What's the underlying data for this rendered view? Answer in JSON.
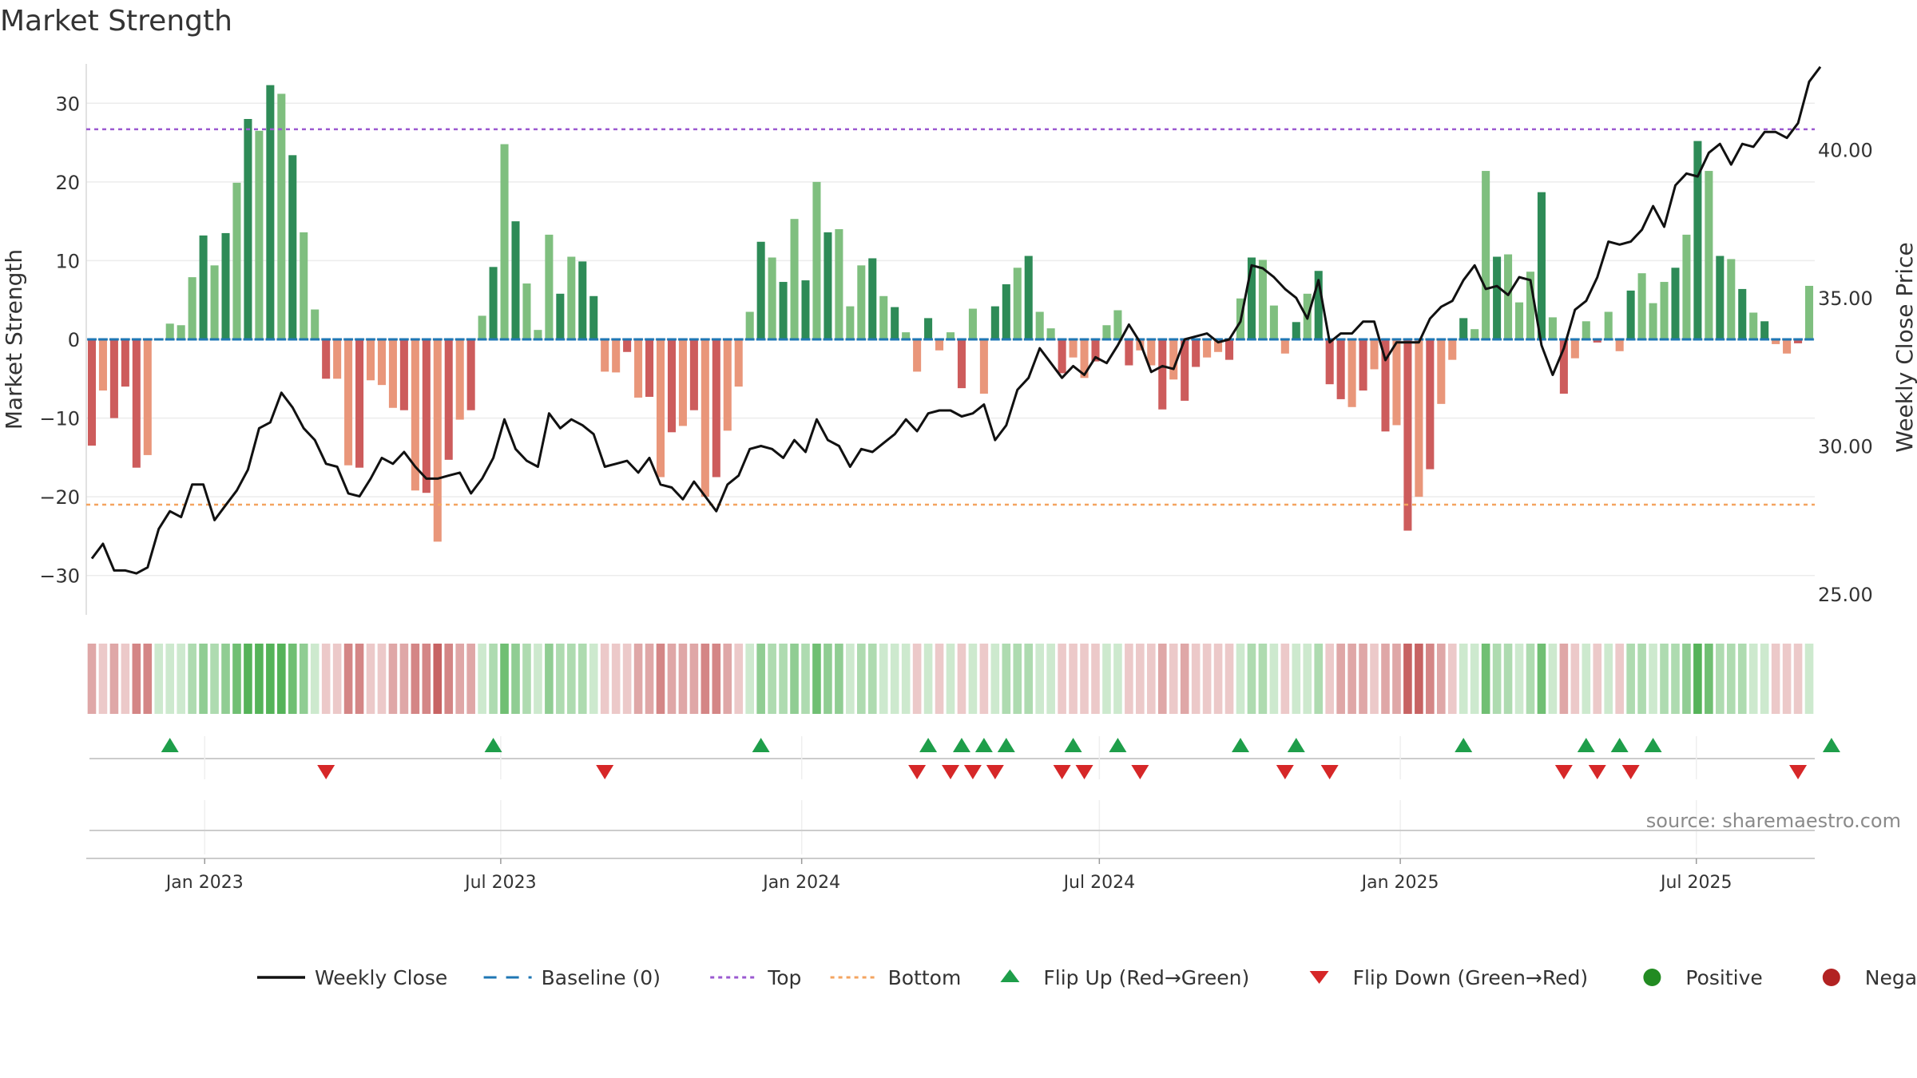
{
  "title": "Market Strength",
  "source": "source: sharemaestro.com",
  "colors": {
    "pos_strong": "#2e8b57",
    "pos_light": "#7fbf7f",
    "neg_strong": "#cd5c5c",
    "neg_light": "#e9967a",
    "close_line": "#111111",
    "baseline": "#1f77b4",
    "top": "#9b59d0",
    "bottom": "#f4a460",
    "flip_up": "#1e9e4a",
    "flip_down": "#d62728",
    "positive_dot": "#228b22",
    "negative_dot": "#b22222"
  },
  "legend": [
    {
      "label": "Weekly Close",
      "kind": "line",
      "color": "#111111"
    },
    {
      "label": "Baseline (0)",
      "kind": "dash",
      "color": "#1f77b4"
    },
    {
      "label": "Top",
      "kind": "dotted",
      "color": "#9b59d0"
    },
    {
      "label": "Bottom",
      "kind": "dotted",
      "color": "#f4a460"
    },
    {
      "label": "Flip Up (Red→Green)",
      "kind": "up",
      "color": "#1e9e4a"
    },
    {
      "label": "Flip Down (Green→Red)",
      "kind": "down",
      "color": "#d62728"
    },
    {
      "label": "Positive",
      "kind": "dot",
      "color": "#228b22"
    },
    {
      "label": "Negative",
      "kind": "dot",
      "color": "#b22222"
    }
  ],
  "chart_data": {
    "type": "bar",
    "ylabel": "Market Strength",
    "y2label": "Weekly Close Price",
    "ylim": [
      -35,
      35
    ],
    "y2lim": [
      24.3,
      42.9
    ],
    "yticks": [
      30,
      20,
      10,
      0,
      -10,
      -20,
      -30
    ],
    "ytick_labels": [
      "30",
      "20",
      "10",
      "0",
      "−10",
      "−20",
      "−30"
    ],
    "y2ticks": [
      40,
      35,
      30,
      25
    ],
    "y2tick_labels": [
      "40.00",
      "35.00",
      "30.00",
      "25.00"
    ],
    "x_dates": {
      "start": "2022-10-24",
      "end": "2025-09-08"
    },
    "xticks": [
      {
        "date": "2023-01-01",
        "label": "Jan 2023"
      },
      {
        "date": "2023-07-01",
        "label": "Jul 2023"
      },
      {
        "date": "2024-01-01",
        "label": "Jan 2024"
      },
      {
        "date": "2024-07-01",
        "label": "Jul 2024"
      },
      {
        "date": "2025-01-01",
        "label": "Jan 2025"
      },
      {
        "date": "2025-07-01",
        "label": "Jul 2025"
      }
    ],
    "top_threshold": 26.7,
    "bottom_threshold": -21,
    "baseline": 0,
    "strength": [
      -13.5,
      -6.5,
      -10,
      -6,
      -16.3,
      -14.7,
      0,
      2,
      1.8,
      7.9,
      13.2,
      9.4,
      13.5,
      19.9,
      28,
      26.5,
      32.3,
      31.2,
      23.4,
      13.6,
      3.8,
      -5,
      -5,
      -16,
      -16.3,
      -5.2,
      -5.8,
      -8.7,
      -9,
      -19.2,
      -19.5,
      -25.7,
      -15.3,
      -10.2,
      -9,
      3,
      9.2,
      24.8,
      15,
      7.1,
      1.2,
      13.3,
      5.8,
      10.5,
      9.9,
      5.5,
      -4.1,
      -4.2,
      -1.6,
      -7.4,
      -7.3,
      -17.5,
      -11.8,
      -11,
      -9,
      -20,
      -17.5,
      -11.6,
      -6,
      3.5,
      12.4,
      10.4,
      7.3,
      15.3,
      7.5,
      20,
      13.6,
      14,
      4.2,
      9.4,
      10.3,
      5.5,
      4.1,
      0.9,
      -4.1,
      2.7,
      -1.4,
      0.9,
      -6.2,
      3.9,
      -6.9,
      4.2,
      7,
      9.1,
      10.6,
      3.5,
      1.4,
      -4.3,
      -2.3,
      -4.9,
      -2.8,
      1.8,
      3.7,
      -3.3,
      -1.4,
      -3.3,
      -8.9,
      -5.1,
      -7.8,
      -3.5,
      -2.3,
      -1.6,
      -2.6,
      5.2,
      10.4,
      10.1,
      4.3,
      -1.8,
      2.2,
      5.8,
      8.7,
      -5.7,
      -7.6,
      -8.6,
      -6.5,
      -3.8,
      -11.7,
      -10.9,
      -24.3,
      -20,
      -16.5,
      -8.2,
      -2.6,
      2.7,
      1.3,
      21.4,
      10.5,
      10.8,
      4.7,
      8.6,
      18.7,
      2.8,
      -6.9,
      -2.4,
      2.3,
      -0.4,
      3.5,
      -1.5,
      6.2,
      8.4,
      4.6,
      7.3,
      9.1,
      13.3,
      25.2,
      21.4,
      10.6,
      10.2,
      6.4,
      3.4,
      2.3,
      -0.6,
      -1.8,
      -0.5,
      6.8
    ],
    "close": [
      26.2,
      26.7,
      25.8,
      25.8,
      25.7,
      25.9,
      27.2,
      27.8,
      27.6,
      28.7,
      28.7,
      27.5,
      28,
      28.5,
      29.2,
      30.6,
      30.8,
      31.8,
      31.3,
      30.6,
      30.2,
      29.4,
      29.3,
      28.4,
      28.3,
      28.9,
      29.6,
      29.4,
      29.8,
      29.3,
      28.9,
      28.9,
      29,
      29.1,
      28.4,
      28.9,
      29.6,
      30.9,
      29.9,
      29.5,
      29.3,
      31.1,
      30.6,
      30.9,
      30.7,
      30.4,
      29.3,
      29.4,
      29.5,
      29.1,
      29.6,
      28.7,
      28.6,
      28.2,
      28.8,
      28.3,
      27.8,
      28.7,
      29,
      29.9,
      30,
      29.9,
      29.6,
      30.2,
      29.8,
      30.9,
      30.2,
      30,
      29.3,
      29.9,
      29.8,
      30.1,
      30.4,
      30.9,
      30.5,
      31.1,
      31.2,
      31.2,
      31,
      31.1,
      31.4,
      30.2,
      30.7,
      31.9,
      32.3,
      33.3,
      32.8,
      32.3,
      32.7,
      32.4,
      33,
      32.8,
      33.4,
      34.1,
      33.5,
      32.5,
      32.7,
      32.6,
      33.6,
      33.7,
      33.8,
      33.5,
      33.6,
      34.2,
      36.1,
      36,
      35.7,
      35.3,
      35,
      34.3,
      35.6,
      33.5,
      33.8,
      33.8,
      34.2,
      34.2,
      32.9,
      33.5,
      33.5,
      33.5,
      34.3,
      34.7,
      34.9,
      35.6,
      36.1,
      35.3,
      35.4,
      35.1,
      35.7,
      35.6,
      33.4,
      32.4,
      33.3,
      34.6,
      34.9,
      35.7,
      36.9,
      36.8,
      36.9,
      37.3,
      38.1,
      37.4,
      38.8,
      39.2,
      39.1,
      39.9,
      40.2,
      39.5,
      40.2,
      40.1,
      40.6,
      40.6,
      40.4,
      40.9,
      42.3,
      42.8
    ],
    "zone": [
      -2,
      -1,
      -2,
      -1,
      -3,
      -3,
      1,
      1,
      1,
      2,
      3,
      2,
      3,
      4,
      5,
      5,
      5,
      5,
      4,
      3,
      1,
      -1,
      -1,
      -3,
      -3,
      -1,
      -1,
      -2,
      -2,
      -3,
      -3,
      -4,
      -3,
      -2,
      -2,
      1,
      2,
      4,
      3,
      2,
      1,
      3,
      2,
      2,
      2,
      1,
      -1,
      -1,
      -1,
      -2,
      -2,
      -3,
      -2,
      -2,
      -2,
      -3,
      -3,
      -2,
      -1,
      1,
      3,
      2,
      2,
      3,
      2,
      4,
      3,
      3,
      1,
      2,
      2,
      1,
      1,
      1,
      -1,
      1,
      -1,
      1,
      -1,
      1,
      -1,
      1,
      2,
      2,
      2,
      1,
      1,
      -1,
      -1,
      -1,
      -1,
      1,
      1,
      -1,
      -1,
      -1,
      -2,
      -1,
      -2,
      -1,
      -1,
      -1,
      -1,
      1,
      2,
      2,
      1,
      -1,
      1,
      1,
      2,
      -1,
      -2,
      -2,
      -2,
      -1,
      -2,
      -2,
      -4,
      -4,
      -3,
      -2,
      -1,
      1,
      1,
      4,
      2,
      2,
      1,
      2,
      4,
      1,
      -2,
      -1,
      1,
      -1,
      1,
      -1,
      2,
      2,
      1,
      2,
      2,
      3,
      5,
      4,
      2,
      2,
      2,
      1,
      1,
      -1,
      -1,
      -1,
      1
    ],
    "flip_up_weeks": [
      7,
      36,
      60,
      75,
      78,
      80,
      82,
      88,
      92,
      103,
      108,
      123,
      134,
      137,
      140,
      156
    ],
    "flip_down_weeks": [
      21,
      46,
      74,
      77,
      79,
      81,
      87,
      89,
      94,
      107,
      111,
      132,
      135,
      138,
      153
    ]
  }
}
